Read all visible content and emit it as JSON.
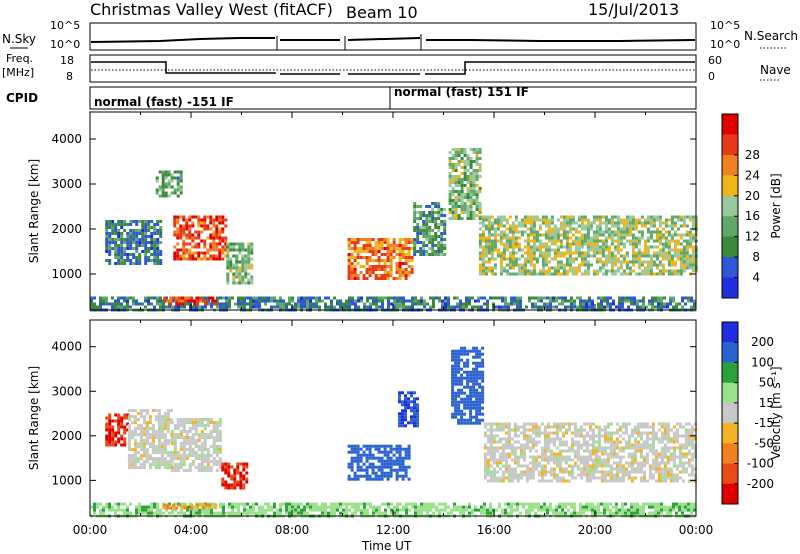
{
  "header": {
    "title": "Christmas Valley West (fitACF)",
    "beam": "Beam 10",
    "date": "15/Jul/2013"
  },
  "nsky_strip": {
    "left_label": "N.Sky",
    "left_ticks": [
      "10^5",
      "10^0"
    ],
    "right_ticks": [
      "10^5",
      "10^0"
    ],
    "right_label": "N.Search"
  },
  "freq_strip": {
    "left_label_1": "Freq.",
    "left_label_2": "[MHz]",
    "left_ticks": [
      "18",
      "8"
    ],
    "right_ticks": [
      "60",
      "0"
    ],
    "right_label": "Nave"
  },
  "cpid_strip": {
    "label": "CPID",
    "modes": [
      "normal (fast) -151 IF",
      "normal (fast) 151 IF"
    ]
  },
  "x_axis": {
    "tick_labels": [
      "00:00",
      "04:00",
      "08:00",
      "12:00",
      "16:00",
      "20:00",
      "00:00"
    ],
    "label": "Time UT"
  },
  "colors": {
    "power": [
      "#1f2fe0",
      "#2f57d6",
      "#3a8a3a",
      "#5fa86a",
      "#98c99e",
      "#f0b418",
      "#f08020",
      "#e83818",
      "#e00000"
    ],
    "velocity": [
      "#1f2fe0",
      "#2a62d0",
      "#29a23b",
      "#9be08a",
      "#c8c8c8",
      "#f5b324",
      "#f08020",
      "#e84a18",
      "#e00000"
    ]
  },
  "chart_data": [
    {
      "type": "heatmap",
      "ylabel": "Slant Range [km]",
      "xlabel": "",
      "x_ticks": [
        "00:00",
        "04:00",
        "08:00",
        "12:00",
        "16:00",
        "20:00",
        "00:00"
      ],
      "y_ticks": [
        1000,
        2000,
        3000,
        4000
      ],
      "ylim": [
        200,
        4600
      ],
      "colorbar": {
        "label": "Power [dB]",
        "ticks": [
          4,
          8,
          12,
          16,
          20,
          24,
          28
        ],
        "range": [
          0,
          32
        ]
      },
      "regions": [
        {
          "t": [
            0.6,
            2.8
          ],
          "r": [
            1200,
            2200
          ],
          "v": 8
        },
        {
          "t": [
            2.6,
            3.6
          ],
          "r": [
            2700,
            3300
          ],
          "v": 12
        },
        {
          "t": [
            3.3,
            5.4
          ],
          "r": [
            1300,
            2300
          ],
          "v": 26
        },
        {
          "t": [
            5.4,
            6.4
          ],
          "r": [
            800,
            1700
          ],
          "v": 14
        },
        {
          "t": [
            10.2,
            12.8
          ],
          "r": [
            900,
            1800
          ],
          "v": 24
        },
        {
          "t": [
            12.8,
            14.1
          ],
          "r": [
            1400,
            2600
          ],
          "v": 10
        },
        {
          "t": [
            14.2,
            15.4
          ],
          "r": [
            2200,
            3800
          ],
          "v": 14
        },
        {
          "t": [
            15.4,
            24.0
          ],
          "r": [
            1000,
            2300
          ],
          "v": 16
        },
        {
          "t": [
            0.0,
            24.0
          ],
          "r": [
            200,
            500
          ],
          "v": 8
        },
        {
          "t": [
            2.9,
            5.0
          ],
          "r": [
            300,
            500
          ],
          "v": 27
        }
      ]
    },
    {
      "type": "heatmap",
      "ylabel": "Slant Range [km]",
      "xlabel": "Time UT",
      "x_ticks": [
        "00:00",
        "04:00",
        "08:00",
        "12:00",
        "16:00",
        "20:00",
        "00:00"
      ],
      "y_ticks": [
        1000,
        2000,
        3000,
        4000
      ],
      "ylim": [
        200,
        4600
      ],
      "colorbar": {
        "label": "Velocity [m s⁻¹]",
        "ticks": [
          -200,
          -100,
          -50,
          -15,
          15,
          50,
          100,
          200
        ],
        "range": [
          -250,
          250
        ]
      },
      "regions": [
        {
          "t": [
            0.6,
            1.5
          ],
          "r": [
            1800,
            2500
          ],
          "v": -200
        },
        {
          "t": [
            1.5,
            3.2
          ],
          "r": [
            1300,
            2600
          ],
          "v": 0
        },
        {
          "t": [
            3.2,
            5.2
          ],
          "r": [
            1200,
            2400
          ],
          "v": 0
        },
        {
          "t": [
            5.2,
            6.2
          ],
          "r": [
            800,
            1400
          ],
          "v": -200
        },
        {
          "t": [
            10.2,
            12.6
          ],
          "r": [
            1000,
            1800
          ],
          "v": 180
        },
        {
          "t": [
            12.2,
            13.0
          ],
          "r": [
            2200,
            3000
          ],
          "v": 200
        },
        {
          "t": [
            14.3,
            15.6
          ],
          "r": [
            2300,
            4000
          ],
          "v": 180
        },
        {
          "t": [
            15.6,
            24.0
          ],
          "r": [
            1000,
            2300
          ],
          "v": 0
        },
        {
          "t": [
            0.0,
            24.0
          ],
          "r": [
            200,
            500
          ],
          "v": 40
        },
        {
          "t": [
            2.9,
            5.0
          ],
          "r": [
            350,
            480
          ],
          "v": -50
        }
      ]
    }
  ]
}
